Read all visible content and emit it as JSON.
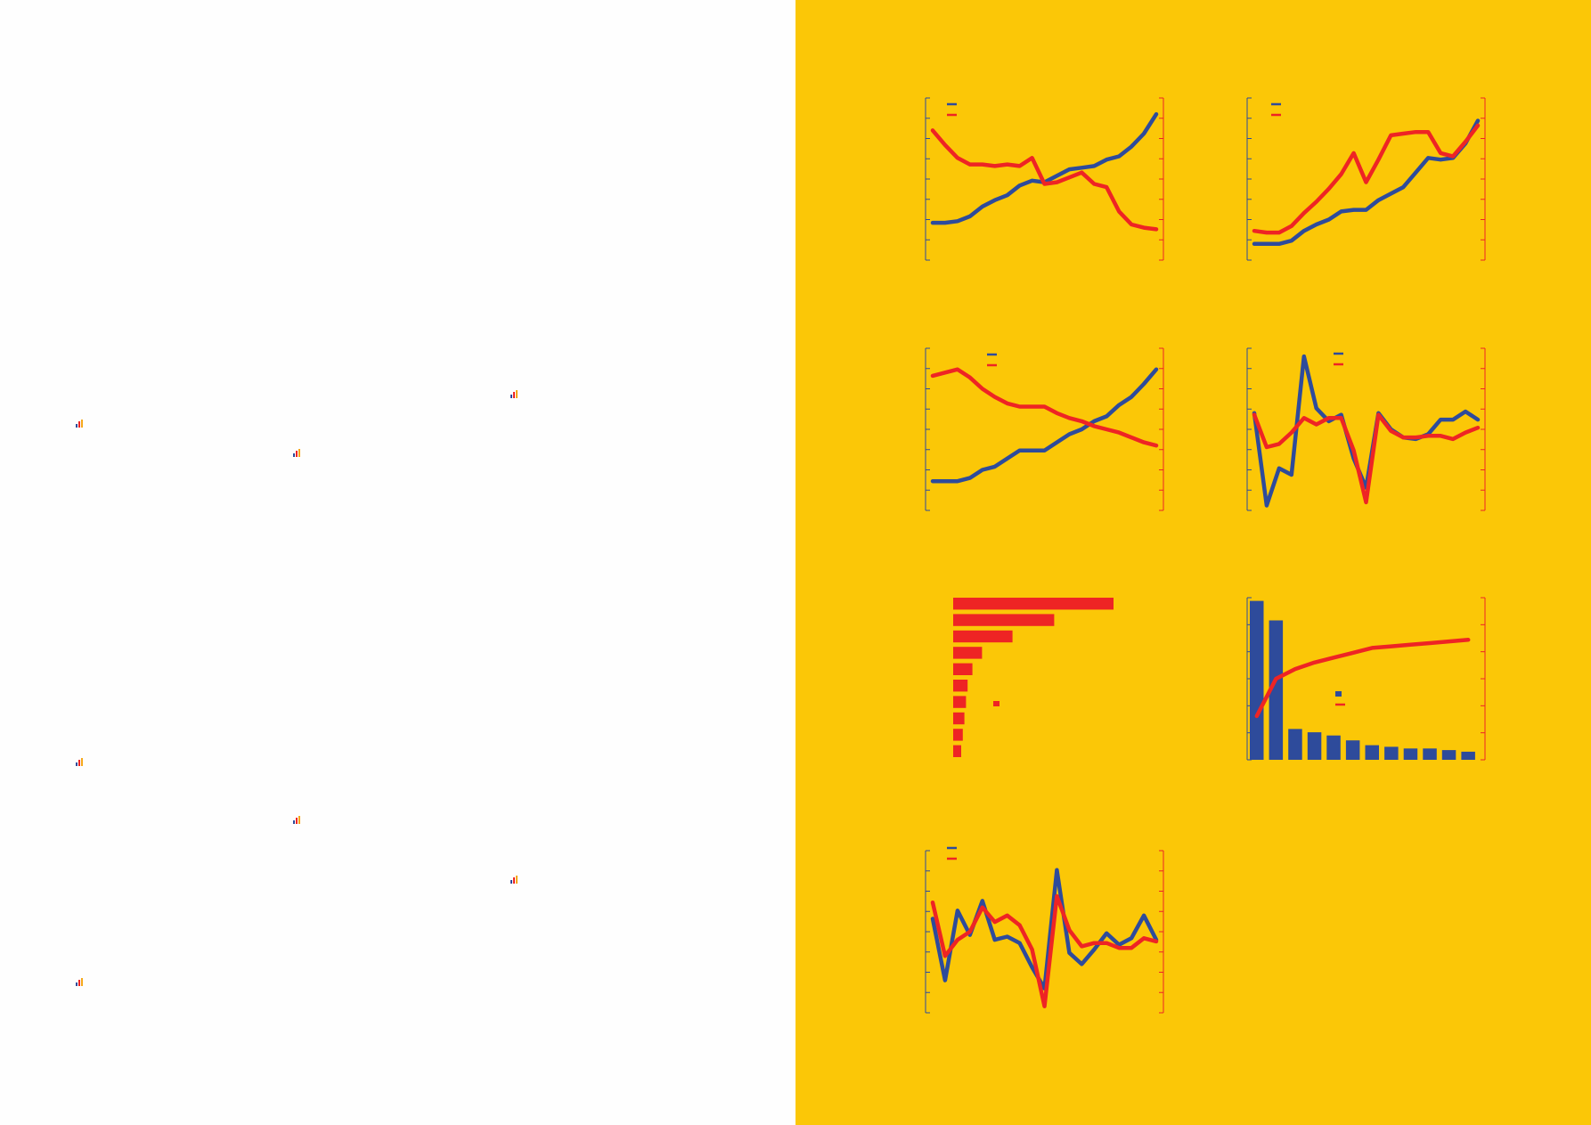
{
  "colors": {
    "left_page": "#fefefe",
    "right_page": "#fbc707",
    "series_blue": "#2e4b9b",
    "series_red": "#ee2424",
    "axis_left": "#2e4b9b",
    "axis_right": "#ee2424"
  },
  "left_page": {
    "icons": [
      {
        "name": "mini-chart-icon"
      },
      {
        "name": "mini-chart-icon"
      },
      {
        "name": "mini-chart-icon"
      },
      {
        "name": "mini-chart-icon"
      },
      {
        "name": "mini-chart-icon"
      },
      {
        "name": "mini-chart-icon"
      },
      {
        "name": "mini-chart-icon"
      }
    ]
  },
  "chart_data": [
    {
      "type": "line",
      "title": "",
      "legend": "top-left",
      "y_axes": "dual",
      "ylim": [
        0,
        100
      ],
      "y2lim": [
        0,
        100
      ],
      "series": [
        {
          "name": "",
          "color": "#2e4b9b",
          "axis": "left",
          "values": [
            23,
            23,
            24,
            27,
            33,
            37,
            40,
            46,
            49,
            48,
            52,
            56,
            57,
            58,
            62,
            64,
            70,
            78,
            90
          ]
        },
        {
          "name": "",
          "color": "#ee2424",
          "axis": "right",
          "values": [
            80,
            71,
            63,
            59,
            59,
            58,
            59,
            58,
            63,
            47,
            48,
            51,
            54,
            47,
            45,
            30,
            22,
            20,
            19
          ]
        }
      ]
    },
    {
      "type": "line",
      "title": "",
      "legend": "top-left",
      "y_axes": "dual",
      "ylim": [
        0,
        100
      ],
      "y2lim": [
        0,
        100
      ],
      "series": [
        {
          "name": "",
          "color": "#2e4b9b",
          "axis": "left",
          "values": [
            10,
            10,
            10,
            12,
            18,
            22,
            25,
            30,
            31,
            31,
            37,
            41,
            45,
            54,
            63,
            62,
            63,
            72,
            86
          ]
        },
        {
          "name": "",
          "color": "#ee2424",
          "axis": "right",
          "values": [
            18,
            17,
            17,
            21,
            29,
            36,
            44,
            53,
            66,
            48,
            62,
            77,
            78,
            79,
            79,
            66,
            64,
            73,
            83
          ]
        }
      ]
    },
    {
      "type": "line",
      "title": "",
      "legend": "top-center",
      "y_axes": "dual",
      "ylim": [
        0,
        100
      ],
      "y2lim": [
        0,
        100
      ],
      "series": [
        {
          "name": "",
          "color": "#2e4b9b",
          "axis": "left",
          "values": [
            18,
            18,
            18,
            20,
            25,
            27,
            32,
            37,
            37,
            37,
            42,
            47,
            50,
            55,
            58,
            65,
            70,
            78,
            87
          ]
        },
        {
          "name": "",
          "color": "#ee2424",
          "axis": "right",
          "values": [
            83,
            85,
            87,
            82,
            75,
            70,
            66,
            64,
            64,
            64,
            60,
            57,
            55,
            52,
            50,
            48,
            45,
            42,
            40
          ]
        }
      ]
    },
    {
      "type": "line",
      "title": "",
      "legend": "top-center",
      "y_axes": "dual",
      "ylim": [
        0,
        100
      ],
      "y2lim": [
        0,
        100
      ],
      "series": [
        {
          "name": "",
          "color": "#2e4b9b",
          "axis": "left",
          "values": [
            60,
            3,
            26,
            22,
            95,
            63,
            55,
            59,
            32,
            14,
            60,
            50,
            45,
            44,
            47,
            56,
            56,
            61,
            56
          ]
        },
        {
          "name": "",
          "color": "#ee2424",
          "axis": "right",
          "values": [
            59,
            39,
            41,
            48,
            57,
            53,
            57,
            57,
            37,
            5,
            59,
            49,
            45,
            45,
            46,
            46,
            44,
            48,
            51
          ]
        }
      ]
    },
    {
      "type": "bar",
      "orientation": "horizontal",
      "title": "",
      "legend": "center",
      "categories": [
        "",
        "",
        "",
        "",
        "",
        "",
        "",
        "",
        "",
        ""
      ],
      "series": [
        {
          "name": "",
          "color": "#ee2424",
          "values": [
            100,
            63,
            37,
            18,
            12,
            9,
            8,
            7,
            6,
            5
          ]
        }
      ]
    },
    {
      "type": "bar",
      "title": "",
      "legend": "center",
      "y_axes": "dual",
      "ylim": [
        0,
        100
      ],
      "y2lim": [
        0,
        100
      ],
      "categories": [
        "",
        "",
        "",
        "",
        "",
        "",
        "",
        "",
        "",
        "",
        "",
        ""
      ],
      "series": [
        {
          "name": "",
          "type": "bar",
          "color": "#2e4b9b",
          "axis": "left",
          "values": [
            98,
            86,
            19,
            17,
            15,
            12,
            9,
            8,
            7,
            7,
            6,
            5
          ]
        },
        {
          "name": "",
          "type": "line",
          "color": "#ee2424",
          "axis": "right",
          "values": [
            27,
            50,
            56,
            60,
            63,
            66,
            69,
            70,
            71,
            72,
            73,
            74
          ]
        }
      ]
    },
    {
      "type": "line",
      "title": "",
      "legend": "top-left",
      "y_axes": "dual",
      "ylim": [
        0,
        100
      ],
      "y2lim": [
        0,
        100
      ],
      "series": [
        {
          "name": "",
          "color": "#2e4b9b",
          "axis": "left",
          "values": [
            58,
            20,
            63,
            48,
            69,
            45,
            47,
            43,
            28,
            15,
            88,
            37,
            30,
            39,
            49,
            42,
            46,
            60,
            45
          ]
        },
        {
          "name": "",
          "color": "#ee2424",
          "axis": "right",
          "values": [
            68,
            35,
            45,
            50,
            65,
            56,
            60,
            54,
            39,
            4,
            72,
            51,
            41,
            43,
            43,
            40,
            40,
            46,
            44
          ]
        }
      ]
    }
  ]
}
